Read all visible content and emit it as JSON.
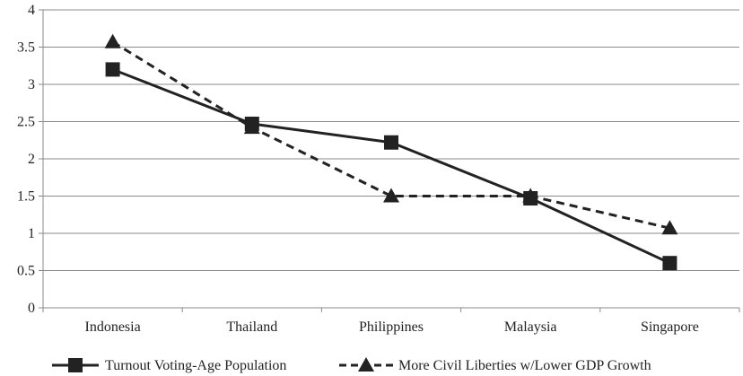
{
  "chart_data": {
    "type": "line",
    "title": "",
    "xlabel": "",
    "ylabel": "",
    "categories": [
      "Indonesia",
      "Thailand",
      "Philippines",
      "Malaysia",
      "Singapore"
    ],
    "yticks": [
      "0",
      "0.5",
      "1",
      "1.5",
      "2",
      "2.5",
      "3",
      "3.5",
      "4"
    ],
    "ylim": [
      0,
      4
    ],
    "grid": "horizontal",
    "legend_position": "bottom",
    "series": [
      {
        "name": "Turnout Voting-Age Population",
        "values": [
          3.2,
          2.47,
          2.22,
          1.47,
          0.6
        ],
        "line_style": "solid",
        "marker": "square",
        "color": "#222222"
      },
      {
        "name": "More Civil Liberties w/Lower GDP Growth",
        "values": [
          3.57,
          2.42,
          1.5,
          1.5,
          1.07
        ],
        "line_style": "dashed",
        "marker": "triangle",
        "color": "#222222"
      }
    ]
  }
}
